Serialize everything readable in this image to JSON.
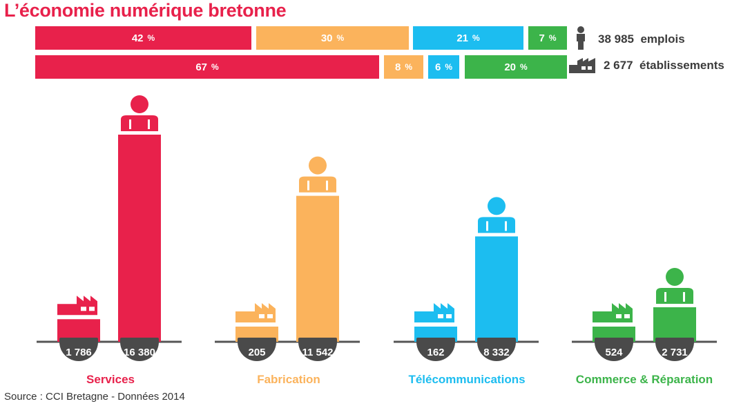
{
  "title": "L’économie numérique bretonne",
  "source": "Source : CCI Bretagne - Données 2014",
  "colors": {
    "services": "#e8214b",
    "fabrication": "#fbb35c",
    "telecom": "#1cbdf0",
    "commerce": "#3cb44a",
    "dark": "#4a4a4a"
  },
  "share_rows": [
    {
      "label_value": "38 985",
      "label_text": "emplois",
      "icon": "person-icon",
      "segments": [
        {
          "value": "42",
          "unit": "%"
        },
        {
          "value": "30",
          "unit": "%"
        },
        {
          "value": "21",
          "unit": "%"
        },
        {
          "value": "7",
          "unit": "%"
        }
      ]
    },
    {
      "label_value": "2 677",
      "label_text": "établissements",
      "icon": "factory-icon",
      "segments": [
        {
          "value": "67",
          "unit": "%"
        },
        {
          "value": "8",
          "unit": "%"
        },
        {
          "value": "6",
          "unit": "%"
        },
        {
          "value": "20",
          "unit": "%"
        }
      ]
    }
  ],
  "chart_data": {
    "type": "bar",
    "categories": [
      "Services",
      "Fabrication",
      "Télécommunications",
      "Commerce & Réparation"
    ],
    "series": [
      {
        "icon": "factory-icon",
        "values": [
          1786,
          205,
          162,
          524
        ],
        "labels": [
          "1 786",
          "205",
          "162",
          "524"
        ]
      },
      {
        "icon": "person-icon",
        "values": [
          16380,
          11542,
          8332,
          2731
        ],
        "labels": [
          "16 380",
          "11 542",
          "8 332",
          "2 731"
        ]
      }
    ]
  }
}
